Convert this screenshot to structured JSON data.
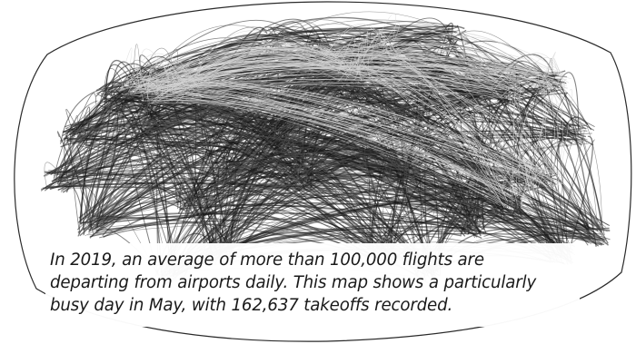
{
  "caption": {
    "lines": [
      "In 2019, an average of more than 100,000 flights are",
      "departing from airports daily. This map shows a particularly",
      "busy day in May, with 162,637 takeoffs recorded."
    ]
  },
  "colors": {
    "background": "#ffffff",
    "ocean": "#ffffff",
    "route_dark": "#1c1c1c",
    "route_mid": "#555555",
    "route_light": "#d6d6d6",
    "text": "#1a1a1a"
  }
}
